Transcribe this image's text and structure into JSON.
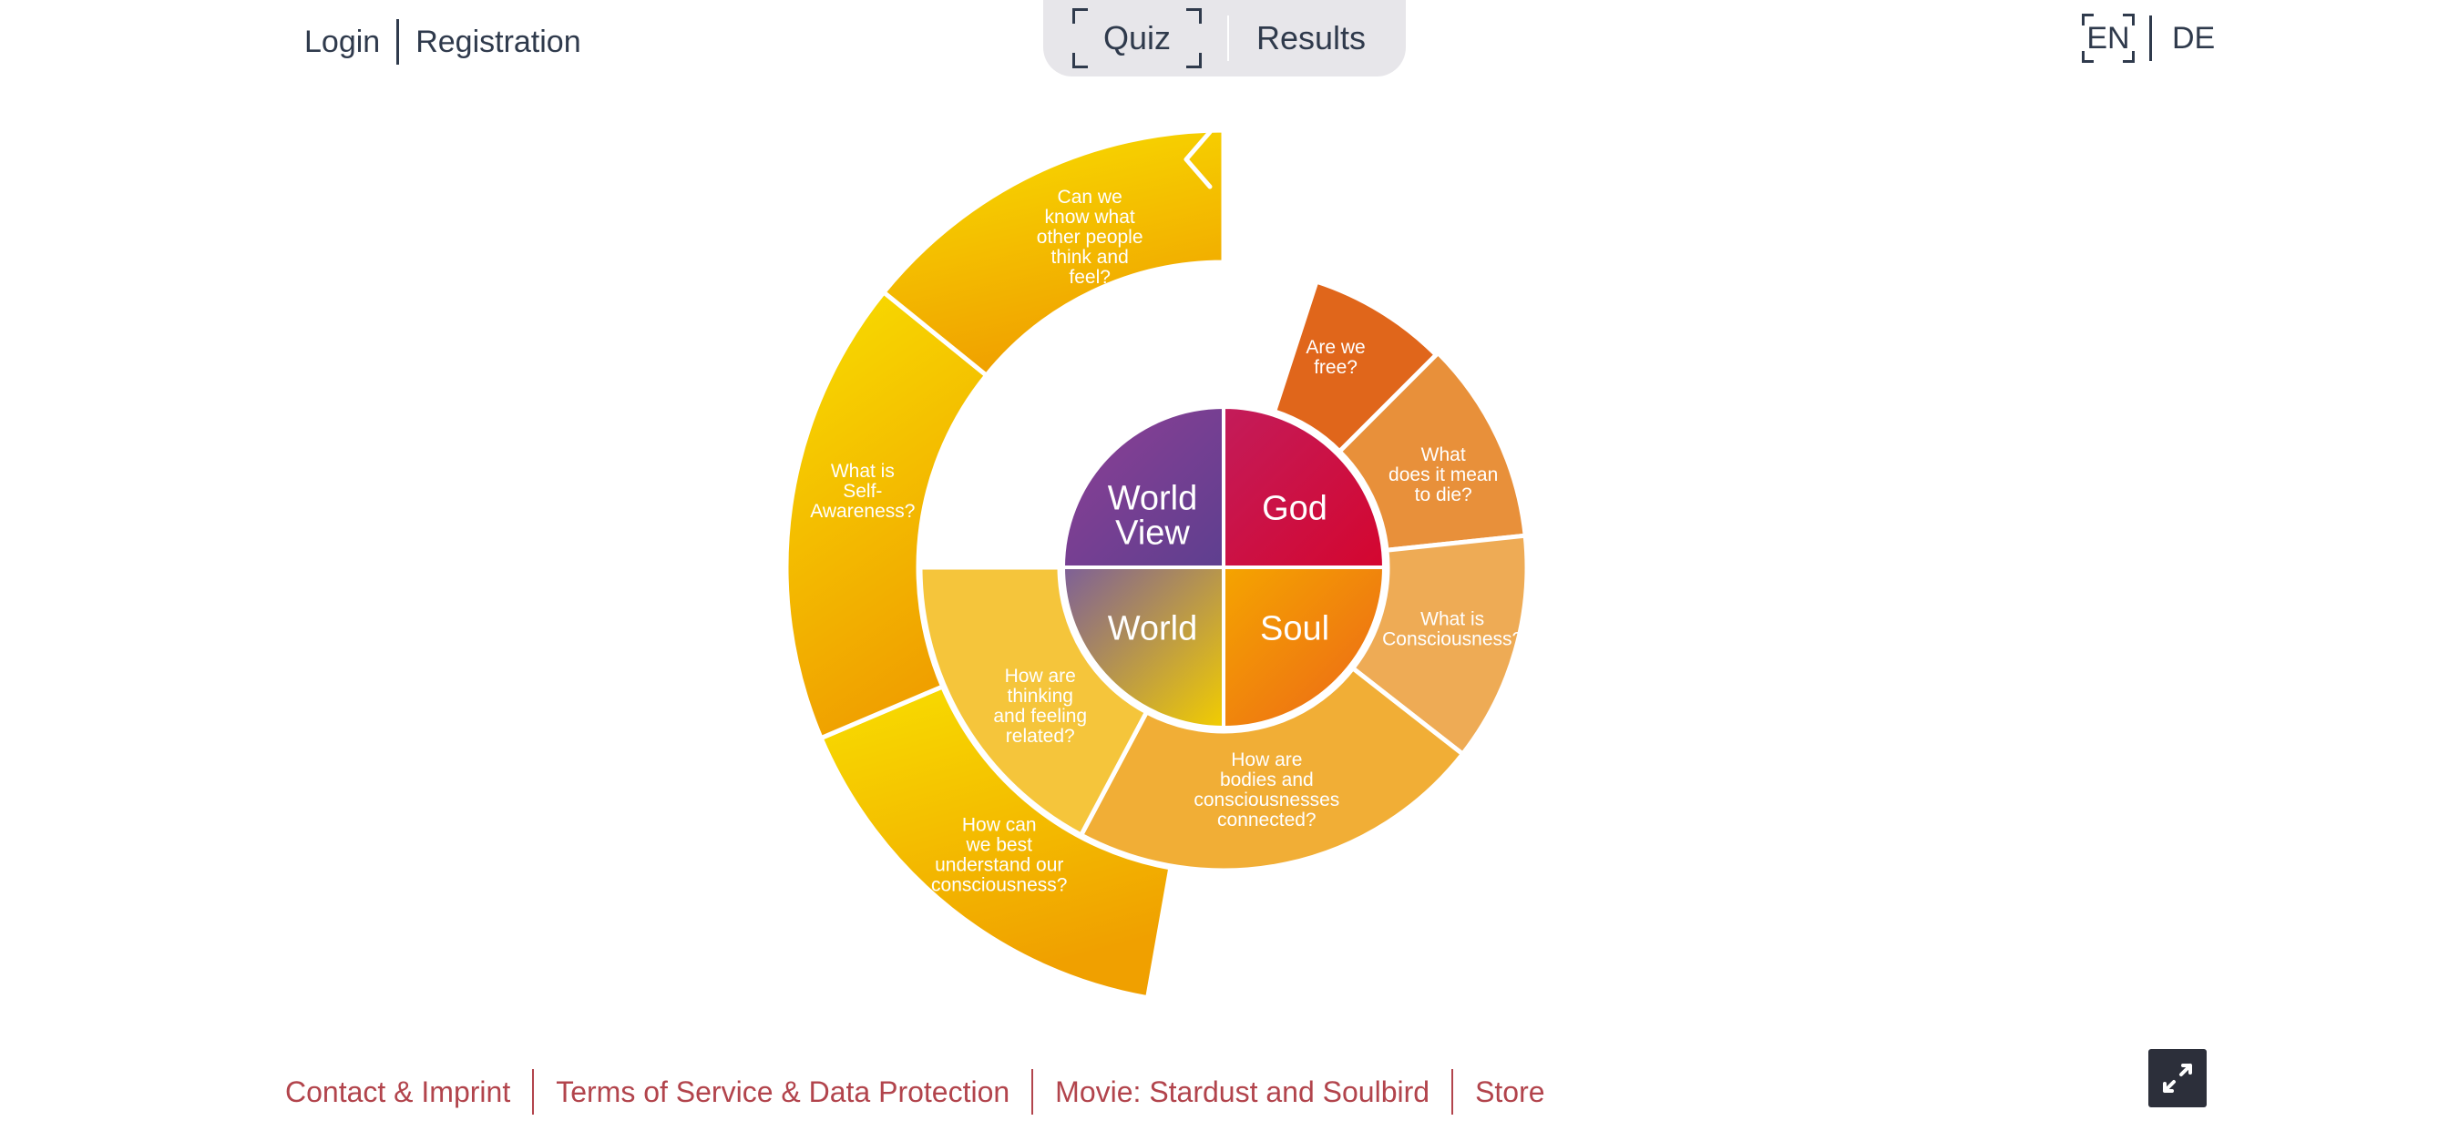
{
  "auth": {
    "login": "Login",
    "registration": "Registration"
  },
  "tabs": {
    "quiz": "Quiz",
    "results": "Results",
    "active": "Quiz"
  },
  "language": {
    "en": "EN",
    "de": "DE",
    "active": "EN"
  },
  "wheel": {
    "quadrants": [
      {
        "key": "world_view",
        "lines": [
          "World",
          "View"
        ],
        "color_start": "#8e3f95",
        "color_end": "#5e3f8f"
      },
      {
        "key": "god",
        "lines": [
          "God"
        ],
        "color_start": "#c31c5a",
        "color_end": "#d4062f"
      },
      {
        "key": "soul",
        "lines": [
          "Soul"
        ],
        "color_start": "#f5a400",
        "color_end": "#ec6618"
      },
      {
        "key": "world",
        "lines": [
          "World"
        ],
        "color_start": "#7d5f98",
        "color_end": "#f2cd00"
      }
    ],
    "questions": [
      {
        "key": "free",
        "lines": [
          "Are we",
          "free?"
        ],
        "color": "#e0661b"
      },
      {
        "key": "die",
        "lines": [
          "What",
          "does it mean",
          "to die?"
        ],
        "color": "#e8903a"
      },
      {
        "key": "consciousness",
        "lines": [
          "What is",
          "Consciousness?"
        ],
        "color": "#eeab55"
      },
      {
        "key": "bodies",
        "lines": [
          "How are",
          "bodies and",
          "consciousnesses",
          "connected?"
        ],
        "color": "#f1ae36"
      },
      {
        "key": "thinking",
        "lines": [
          "How are",
          "thinking",
          "and feeling",
          "related?"
        ],
        "color": "#f5c53b"
      },
      {
        "key": "best",
        "lines": [
          "How can",
          "we best",
          "understand our",
          "consciousness?"
        ],
        "color": "#f2ac00"
      },
      {
        "key": "self",
        "lines": [
          "What is",
          "Self-",
          "Awareness?"
        ],
        "color": "#f5c400"
      },
      {
        "key": "others",
        "lines": [
          "Can we",
          "know what",
          "other people",
          "think and",
          "feel?"
        ],
        "color": "#f6d600"
      }
    ],
    "back_icon": "chevron-left-icon"
  },
  "footer": {
    "links": [
      "Contact & Imprint",
      "Terms of Service & Data Protection",
      "Movie: Stardust and Soulbird",
      "Store"
    ],
    "fullscreen_icon": "expand-icon"
  }
}
